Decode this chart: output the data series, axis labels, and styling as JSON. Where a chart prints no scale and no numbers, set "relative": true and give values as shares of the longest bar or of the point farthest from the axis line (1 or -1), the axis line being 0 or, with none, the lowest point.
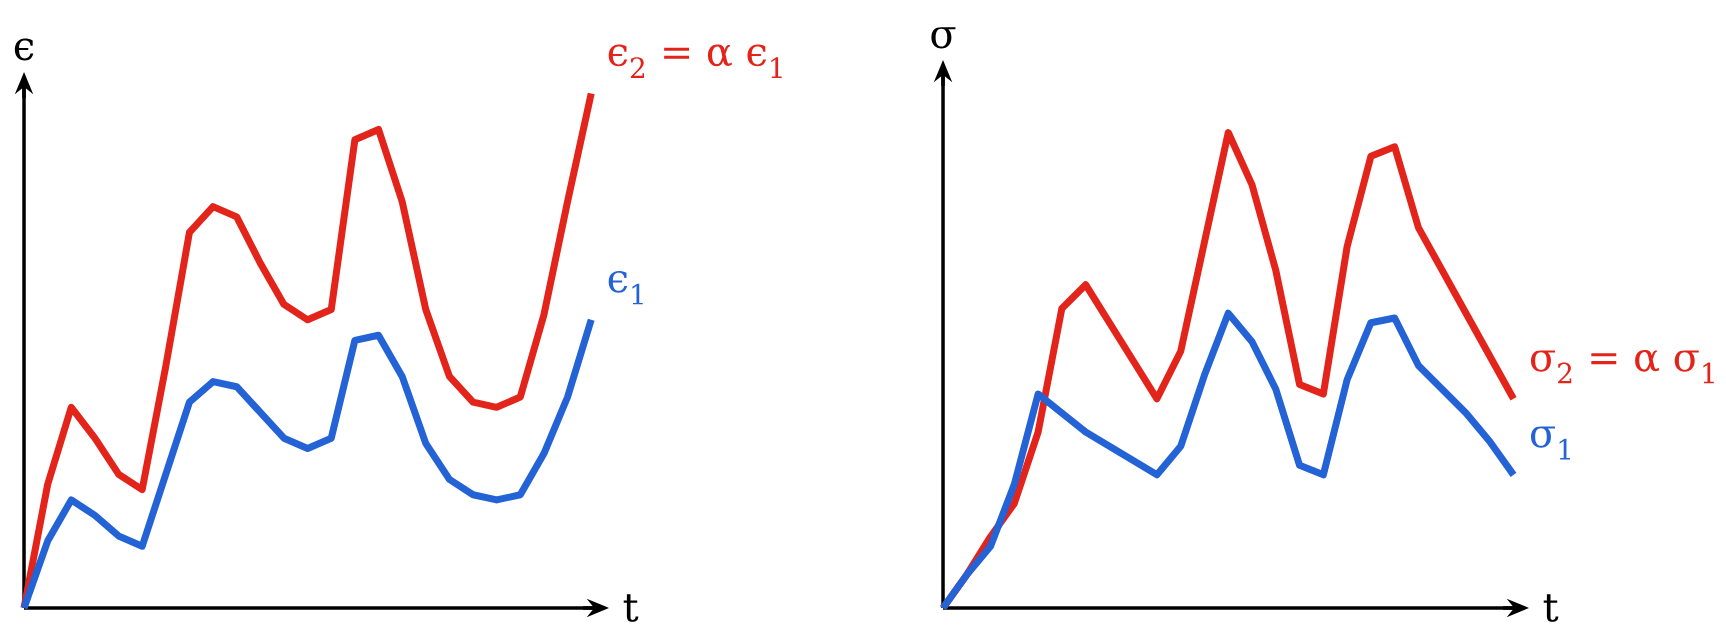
{
  "chart_data": [
    {
      "type": "line",
      "relative": true,
      "ylabel": "ϵ",
      "xlabel": "t",
      "categories": [
        null,
        null,
        null,
        null,
        null,
        null,
        null,
        null,
        null,
        null,
        null,
        null,
        null,
        null,
        null,
        null,
        null,
        null,
        null,
        null,
        null,
        null,
        null,
        null,
        null
      ],
      "series": [
        {
          "name": "ϵ$_{2}$ = α ϵ$_{1}$",
          "color": "#e3241b",
          "values": [
            0,
            0.24,
            0.39,
            0.33,
            0.26,
            0.23,
            0.47,
            0.73,
            0.78,
            0.76,
            0.67,
            0.59,
            0.56,
            0.58,
            0.91,
            0.93,
            0.79,
            0.58,
            0.45,
            0.4,
            0.39,
            0.41,
            0.57,
            0.79,
            1
          ]
        },
        {
          "name": "ϵ$_{1}$",
          "color": "#2463d6",
          "values": [
            0,
            0.13,
            0.21,
            0.18,
            0.14,
            0.12,
            0.26,
            0.4,
            0.44,
            0.43,
            0.38,
            0.33,
            0.31,
            0.33,
            0.52,
            0.53,
            0.45,
            0.32,
            0.25,
            0.22,
            0.21,
            0.22,
            0.3,
            0.41,
            0.56
          ]
        }
      ]
    },
    {
      "type": "line",
      "relative": true,
      "ylabel": "σ",
      "xlabel": "t",
      "categories": [
        null,
        null,
        null,
        null,
        null,
        null,
        null,
        null,
        null,
        null,
        null,
        null,
        null,
        null,
        null,
        null,
        null,
        null,
        null,
        null,
        null,
        null,
        null,
        null,
        null
      ],
      "series": [
        {
          "name": "σ$_{2}$ = α σ$_{1}$",
          "color": "#e3241b",
          "values": [
            0,
            0.07,
            0.15,
            0.22,
            0.37,
            0.63,
            0.68,
            0.6,
            0.52,
            0.44,
            0.54,
            0.77,
            1,
            0.89,
            0.71,
            0.47,
            0.45,
            0.76,
            0.95,
            0.97,
            0.8,
            0.71,
            0.62,
            0.53,
            0.44
          ]
        },
        {
          "name": "σ$_{1}$",
          "color": "#2463d6",
          "values": [
            0,
            0.07,
            0.13,
            0.26,
            0.45,
            0.41,
            0.37,
            0.34,
            0.31,
            0.28,
            0.34,
            0.49,
            0.62,
            0.56,
            0.46,
            0.3,
            0.28,
            0.48,
            0.6,
            0.61,
            0.51,
            0.46,
            0.41,
            0.35,
            0.28
          ]
        }
      ]
    }
  ]
}
